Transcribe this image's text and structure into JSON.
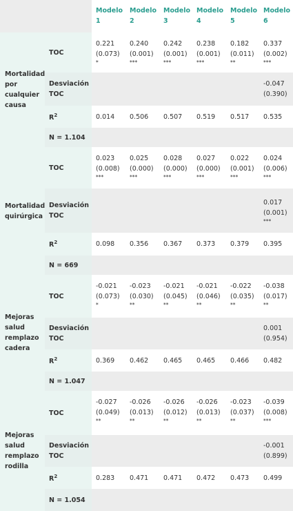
{
  "table": {
    "columns": [
      "Modelo 1",
      "Modelo 2",
      "Modelo 3",
      "Modelo 4",
      "Modelo 5",
      "Modelo 6"
    ],
    "groups": [
      {
        "label": "Mortalidad por cualquier causa",
        "toc": {
          "label": "TOC",
          "cells": [
            {
              "coef": "0.221",
              "se": "(0.073)",
              "stars": "*"
            },
            {
              "coef": "0.240",
              "se": "(0.001)",
              "stars": "***"
            },
            {
              "coef": "0.242",
              "se": "(0.001)",
              "stars": "***"
            },
            {
              "coef": "0.238",
              "se": "(0.001)",
              "stars": "***"
            },
            {
              "coef": "0.182",
              "se": "(0.011)",
              "stars": "**"
            },
            {
              "coef": "0.337",
              "se": "(0.002)",
              "stars": "***"
            }
          ]
        },
        "desviacion": {
          "label": "Desviación TOC",
          "cells": [
            null,
            null,
            null,
            null,
            null,
            {
              "coef": "-0.047",
              "se": "(0.390)"
            }
          ]
        },
        "r2": {
          "label": "R",
          "sup": "2",
          "cells": [
            "0.014",
            "0.506",
            "0.507",
            "0.519",
            "0.517",
            "0.535"
          ]
        },
        "n": "N = 1.104"
      },
      {
        "label": "Mortalidad quirúrgica",
        "toc": {
          "label": "TOC",
          "cells": [
            {
              "coef": "0.023",
              "se": "(0.008)",
              "stars": "***"
            },
            {
              "coef": "0.025",
              "se": "(0.000)",
              "stars": "***"
            },
            {
              "coef": "0.028",
              "se": "(0.000)",
              "stars": "***"
            },
            {
              "coef": "0.027",
              "se": "(0.000)",
              "stars": "***"
            },
            {
              "coef": "0.022",
              "se": "(0.001)",
              "stars": "***"
            },
            {
              "coef": "0.024",
              "se": "(0.006)",
              "stars": "***"
            }
          ]
        },
        "desviacion": {
          "label": "Desviación TOC",
          "cells": [
            null,
            null,
            null,
            null,
            null,
            {
              "coef": "0.017",
              "se": "(0.001)",
              "stars": "***"
            }
          ]
        },
        "r2": {
          "label": "R",
          "sup": "2",
          "cells": [
            "0.098",
            "0.356",
            "0.367",
            "0.373",
            "0.379",
            "0.395"
          ]
        },
        "n": "N = 669"
      },
      {
        "label": "Mejoras salud remplazo cadera",
        "toc": {
          "label": "TOC",
          "cells": [
            {
              "coef": "-0.021",
              "se": "(0.073)",
              "stars": "*"
            },
            {
              "coef": "-0.023",
              "se": "(0.030)",
              "stars": "**"
            },
            {
              "coef": "-0.021",
              "se": "(0.045)",
              "stars": "**"
            },
            {
              "coef": "-0.021",
              "se": "(0.046)",
              "stars": "**"
            },
            {
              "coef": "-0.022",
              "se": "(0.035)",
              "stars": "**"
            },
            {
              "coef": "-0.038",
              "se": "(0.017)",
              "stars": "**"
            }
          ]
        },
        "desviacion": {
          "label": "Desviación TOC",
          "cells": [
            null,
            null,
            null,
            null,
            null,
            {
              "coef": "0.001",
              "se": "(0.954)"
            }
          ]
        },
        "r2": {
          "label": "R",
          "sup": "2",
          "cells": [
            "0.369",
            "0.462",
            "0.465",
            "0.465",
            "0.466",
            "0.482"
          ]
        },
        "n": "N = 1.047"
      },
      {
        "label": "Mejoras salud remplazo rodilla",
        "toc": {
          "label": "TOC",
          "cells": [
            {
              "coef": "-0.027",
              "se": "(0.049)",
              "stars": "**"
            },
            {
              "coef": "-0.026",
              "se": "(0.013)",
              "stars": "**"
            },
            {
              "coef": "-0.026",
              "se": "(0.012)",
              "stars": "**"
            },
            {
              "coef": "-0.026",
              "se": "(0.013)",
              "stars": "**"
            },
            {
              "coef": "-0.023",
              "se": "(0.037)",
              "stars": "**"
            },
            {
              "coef": "-0.039",
              "se": "(0.008)",
              "stars": "***"
            }
          ]
        },
        "desviacion": {
          "label": "Desviación TOC",
          "cells": [
            null,
            null,
            null,
            null,
            null,
            {
              "coef": "-0.001",
              "se": "(0.899)"
            }
          ]
        },
        "r2": {
          "label": "R",
          "sup": "2",
          "cells": [
            "0.283",
            "0.471",
            "0.471",
            "0.472",
            "0.473",
            "0.499"
          ]
        },
        "n": "N = 1.054"
      }
    ]
  }
}
